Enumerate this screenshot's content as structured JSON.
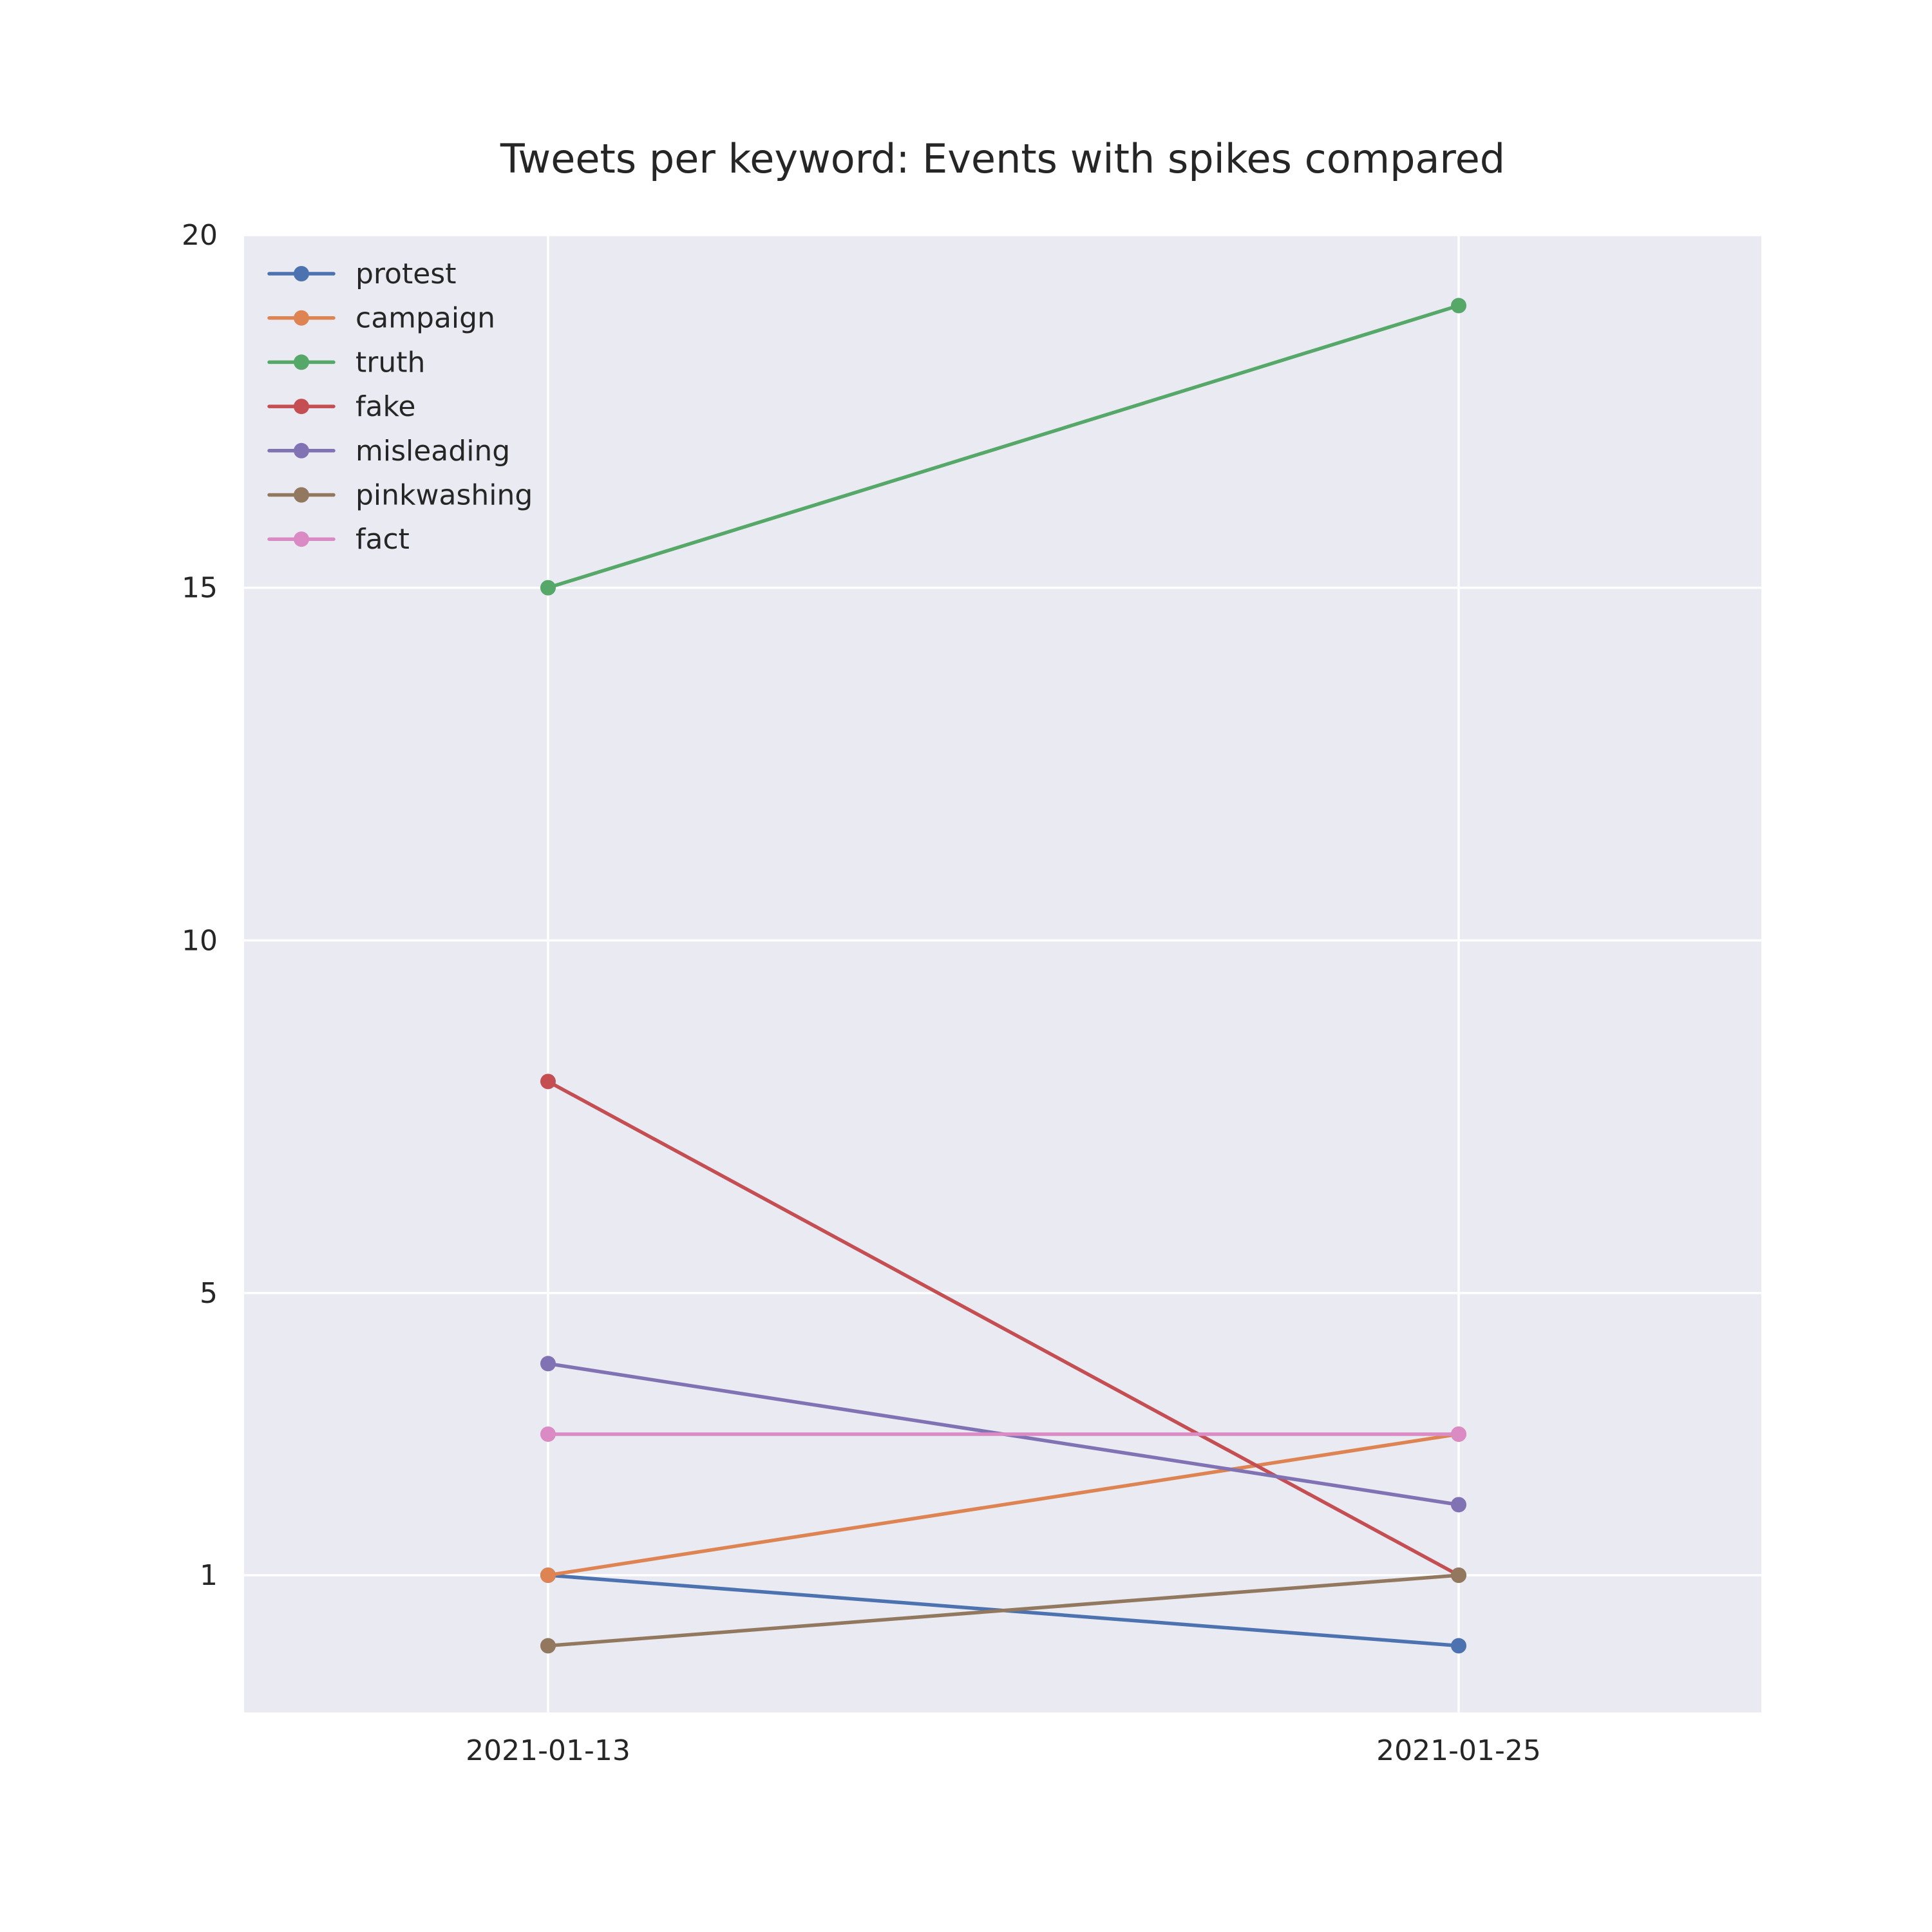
{
  "chart_data": {
    "type": "line",
    "title": "Tweets per keyword: Events with spikes compared",
    "xlabel": "",
    "ylabel": "",
    "x": [
      "2021-01-13",
      "2021-01-25"
    ],
    "y_ticks": [
      1,
      5,
      10,
      15,
      20
    ],
    "ylim": [
      -1,
      20
    ],
    "grid": true,
    "legend_position": "top-left",
    "background": "#eaeaf2",
    "series": [
      {
        "name": "protest",
        "color": "#4c72b0",
        "values": [
          1,
          0
        ]
      },
      {
        "name": "campaign",
        "color": "#dd8452",
        "values": [
          1,
          3
        ]
      },
      {
        "name": "truth",
        "color": "#55a868",
        "values": [
          15,
          19
        ]
      },
      {
        "name": "fake",
        "color": "#c44e52",
        "values": [
          8,
          1
        ]
      },
      {
        "name": "misleading",
        "color": "#8172b3",
        "values": [
          4,
          2
        ]
      },
      {
        "name": "pinkwashing",
        "color": "#937860",
        "values": [
          0,
          1
        ]
      },
      {
        "name": "fact",
        "color": "#da8bc3",
        "values": [
          3,
          3
        ]
      }
    ]
  }
}
